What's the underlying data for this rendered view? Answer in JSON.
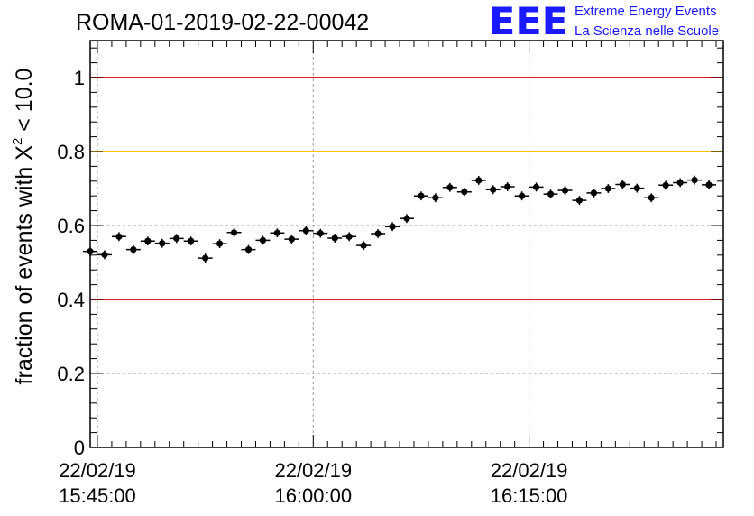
{
  "header": {
    "run_title": "ROMA-01-2019-02-22-00042",
    "logo_letters": "EEE",
    "logo_line1": "Extreme Energy Events",
    "logo_line2": "La Scienza nelle Scuole"
  },
  "chart_data": {
    "type": "scatter",
    "title": "ROMA-01-2019-02-22-00042",
    "xlabel": "",
    "ylabel_prefix": "fraction of events with ",
    "ylabel_symbol": "Χ",
    "ylabel_superscript": "2",
    "ylabel_suffix": " < 10.0",
    "ylim": [
      0,
      1.1
    ],
    "xlim": [
      "22/02/19 15:44:30",
      "22/02/19 16:28:30"
    ],
    "grid": true,
    "x_tick_labels": [
      {
        "time": "22/02/19 15:45:00",
        "date_label": "22/02/19",
        "time_label": "15:45:00"
      },
      {
        "time": "22/02/19 16:00:00",
        "date_label": "22/02/19",
        "time_label": "16:00:00"
      },
      {
        "time": "22/02/19 16:15:00",
        "date_label": "22/02/19",
        "time_label": "16:15:00"
      }
    ],
    "y_ticks": [
      0,
      0.2,
      0.4,
      0.6,
      0.8,
      1
    ],
    "y_tick_labels": [
      "0",
      "0.2",
      "0.4",
      "0.6",
      "0.8",
      "1"
    ],
    "reference_lines": [
      {
        "y": 1.0,
        "color": "#e8191a"
      },
      {
        "y": 0.8,
        "color": "#ffc000"
      },
      {
        "y": 0.4,
        "color": "#e8191a"
      }
    ],
    "series": [
      {
        "color": "#000000",
        "x": [
          "15:44:30",
          "15:45:30",
          "15:46:30",
          "15:47:30",
          "15:48:30",
          "15:49:30",
          "15:50:30",
          "15:51:30",
          "15:52:30",
          "15:53:30",
          "15:54:30",
          "15:55:30",
          "15:56:30",
          "15:57:30",
          "15:58:30",
          "15:59:30",
          "16:00:30",
          "16:01:30",
          "16:02:30",
          "16:03:30",
          "16:04:30",
          "16:05:30",
          "16:06:30",
          "16:07:30",
          "16:08:30",
          "16:09:30",
          "16:10:30",
          "16:11:30",
          "16:12:30",
          "16:13:30",
          "16:14:30",
          "16:15:30",
          "16:16:30",
          "16:17:30",
          "16:18:30",
          "16:19:30",
          "16:20:30",
          "16:21:30",
          "16:22:30",
          "16:23:30",
          "16:24:30",
          "16:25:30",
          "16:26:30",
          "16:27:30"
        ],
        "y": [
          0.53,
          0.521,
          0.57,
          0.535,
          0.558,
          0.552,
          0.565,
          0.558,
          0.512,
          0.551,
          0.581,
          0.535,
          0.56,
          0.58,
          0.563,
          0.586,
          0.579,
          0.566,
          0.57,
          0.546,
          0.578,
          0.597,
          0.619,
          0.68,
          0.675,
          0.703,
          0.691,
          0.722,
          0.697,
          0.705,
          0.68,
          0.704,
          0.685,
          0.695,
          0.668,
          0.688,
          0.7,
          0.711,
          0.701,
          0.675,
          0.709,
          0.716,
          0.723,
          0.71
        ],
        "y_err": [
          0.012,
          0.012,
          0.012,
          0.012,
          0.012,
          0.012,
          0.012,
          0.012,
          0.012,
          0.012,
          0.012,
          0.012,
          0.012,
          0.012,
          0.012,
          0.012,
          0.012,
          0.012,
          0.012,
          0.012,
          0.012,
          0.012,
          0.012,
          0.012,
          0.012,
          0.012,
          0.012,
          0.012,
          0.012,
          0.012,
          0.012,
          0.012,
          0.012,
          0.012,
          0.012,
          0.012,
          0.012,
          0.012,
          0.012,
          0.012,
          0.012,
          0.012,
          0.012,
          0.012
        ]
      }
    ]
  }
}
